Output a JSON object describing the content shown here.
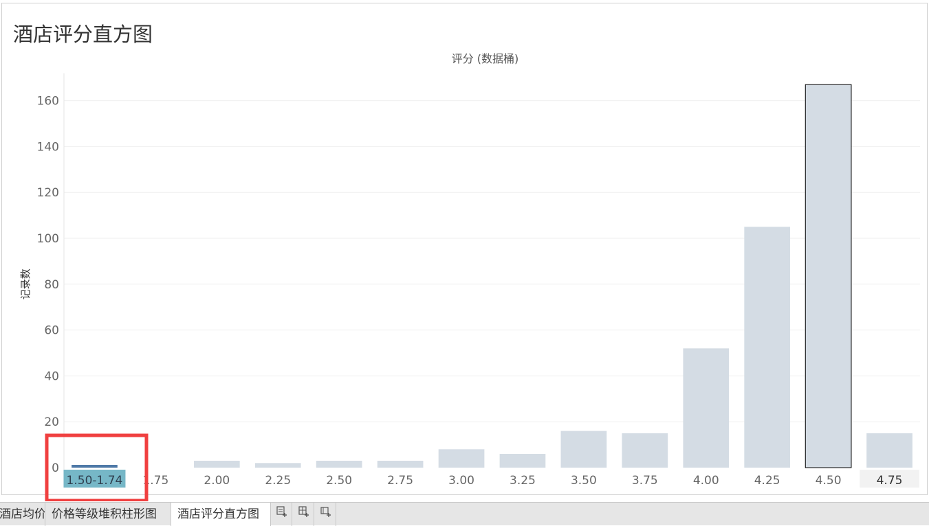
{
  "sheet": {
    "title": "酒店评分直方图"
  },
  "chart_data": {
    "type": "bar",
    "title": "评分 (数据桶)",
    "xlabel": "",
    "ylabel": "记录数",
    "ylim": [
      -6,
      172
    ],
    "yticks": [
      0,
      20,
      40,
      60,
      80,
      100,
      120,
      140,
      160
    ],
    "categories": [
      "1.50-1.74",
      "1.75",
      "2.00",
      "2.25",
      "2.50",
      "2.75",
      "3.00",
      "3.25",
      "3.50",
      "3.75",
      "4.00",
      "4.25",
      "4.50",
      "4.75"
    ],
    "values": [
      1,
      0,
      3,
      2,
      3,
      3,
      8,
      6,
      16,
      15,
      52,
      105,
      167,
      15
    ],
    "grid": true,
    "selected_category": "1.50-1.74",
    "colors": {
      "bar": "#d4dce4",
      "bar_selected": "#4e79a7",
      "selected_label_bg": "#76b7c7",
      "highlight_box": "#f04040",
      "grid": "#efefef",
      "axis_text": "#666666"
    }
  },
  "tabs": [
    {
      "label": "酒店均价"
    },
    {
      "label": "价格等级堆积柱形图"
    },
    {
      "label": "酒店评分直方图"
    }
  ],
  "tab_icons": [
    "new-worksheet-icon",
    "new-dashboard-icon",
    "new-story-icon"
  ]
}
